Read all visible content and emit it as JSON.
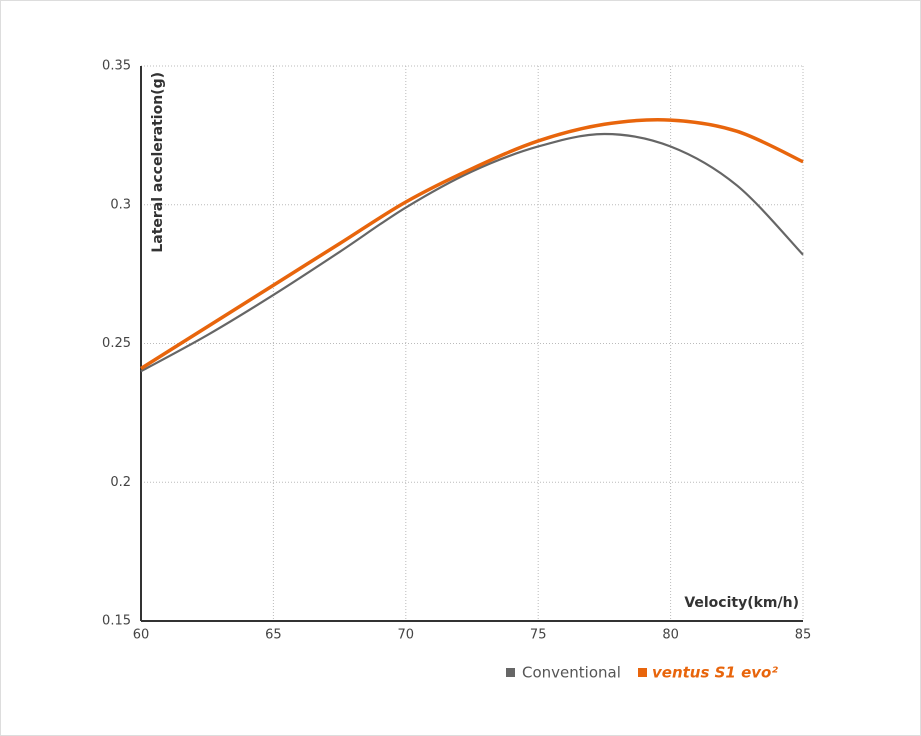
{
  "chart_data": {
    "type": "line",
    "xlabel": "Velocity(km/h)",
    "ylabel": "Lateral acceleration(g)",
    "x": [
      60,
      62.5,
      65,
      67.5,
      70,
      72.5,
      75,
      77.5,
      80,
      82.5,
      85
    ],
    "series": [
      {
        "name": "Conventional",
        "color": "#666666",
        "values": [
          0.24,
          0.253,
          0.2675,
          0.283,
          0.299,
          0.312,
          0.321,
          0.3255,
          0.321,
          0.307,
          0.282
        ]
      },
      {
        "name": "ventus S1 evo²",
        "color": "#e8650c",
        "values": [
          0.241,
          0.256,
          0.271,
          0.286,
          0.301,
          0.313,
          0.323,
          0.329,
          0.3305,
          0.3265,
          0.3155
        ]
      }
    ],
    "xlim": [
      60,
      85
    ],
    "xticks": [
      60,
      65,
      70,
      75,
      80,
      85
    ],
    "ylim": [
      0.15,
      0.35
    ],
    "yticks": [
      0.15,
      0.2,
      0.25,
      0.3,
      0.35
    ],
    "grid": true
  }
}
